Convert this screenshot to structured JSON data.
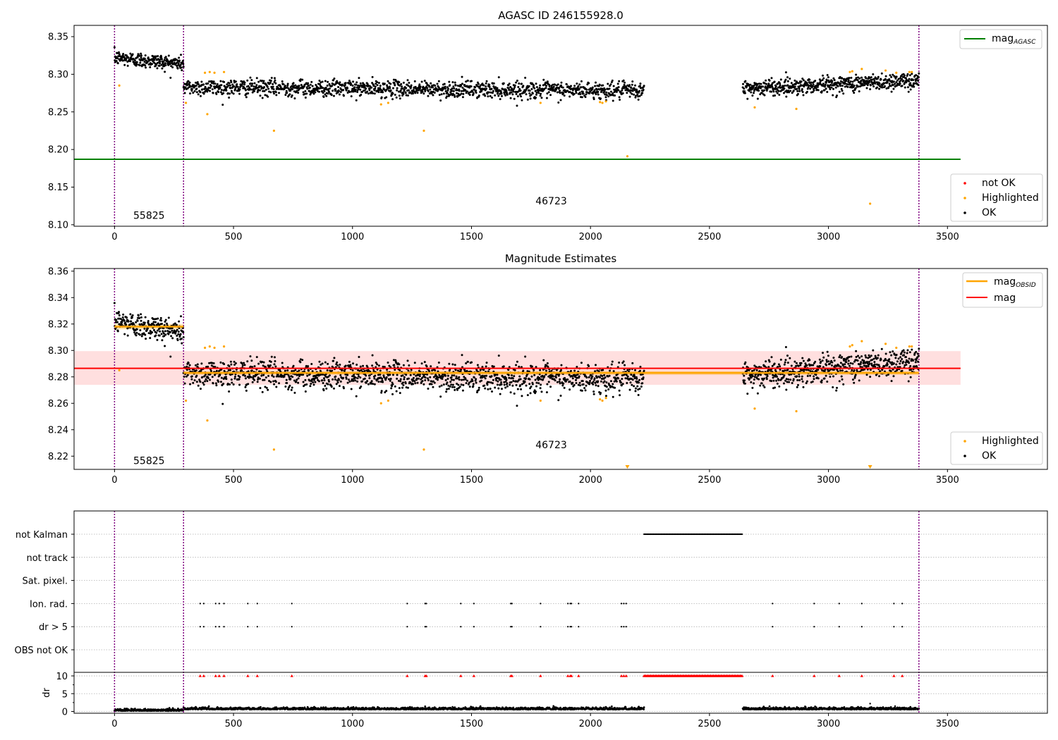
{
  "colors": {
    "ok": "#000000",
    "highlighted": "#FFA500",
    "not_ok": "#FF0000",
    "agasc_line": "#008000",
    "obsid_line": "#FFA500",
    "mag_line": "#FF0000",
    "band": "#FFC0C0",
    "obs_boundary": "#800080",
    "grid": "#b0b0b0"
  },
  "chart_data": [
    {
      "type": "scatter",
      "title": "AGASC ID 246155928.0",
      "xlim": [
        -170,
        3920
      ],
      "ylim": [
        8.098,
        8.365
      ],
      "xticks": [
        0,
        500,
        1000,
        1500,
        2000,
        2500,
        3000,
        3500
      ],
      "yticks": [
        8.1,
        8.15,
        8.2,
        8.25,
        8.3,
        8.35
      ],
      "mag_agasc": 8.187,
      "mag_agasc_xrange": [
        -170,
        3555
      ],
      "obs_boundaries": [
        0,
        290,
        3380
      ],
      "obs_labels": [
        {
          "x": 145,
          "y": 8.108,
          "text": "55825"
        },
        {
          "x": 1835,
          "y": 8.127,
          "text": "46723"
        }
      ],
      "segments": [
        {
          "x0": 0,
          "x1": 290,
          "start": 8.322,
          "end": 8.314,
          "noise": 0.005,
          "n": 240
        },
        {
          "x0": 290,
          "x1": 2225,
          "start": 8.283,
          "end": 8.278,
          "noise": 0.0055,
          "n": 1400
        },
        {
          "x0": 2640,
          "x1": 3380,
          "start": 8.281,
          "end": 8.292,
          "noise": 0.0055,
          "n": 600
        }
      ],
      "highlighted_points": [
        [
          20,
          8.285
        ],
        [
          300,
          8.262
        ],
        [
          380,
          8.302
        ],
        [
          390,
          8.247
        ],
        [
          400,
          8.303
        ],
        [
          420,
          8.302
        ],
        [
          460,
          8.303
        ],
        [
          670,
          8.225
        ],
        [
          1120,
          8.26
        ],
        [
          1150,
          8.262
        ],
        [
          1300,
          8.225
        ],
        [
          1790,
          8.262
        ],
        [
          2040,
          8.263
        ],
        [
          2050,
          8.262
        ],
        [
          2065,
          8.264
        ],
        [
          2155,
          8.191
        ],
        [
          2690,
          8.256
        ],
        [
          2865,
          8.254
        ],
        [
          3090,
          8.303
        ],
        [
          3100,
          8.304
        ],
        [
          3140,
          8.307
        ],
        [
          3175,
          8.128
        ],
        [
          3240,
          8.305
        ],
        [
          3285,
          8.302
        ],
        [
          3340,
          8.303
        ],
        [
          3350,
          8.303
        ]
      ],
      "legend_lines": [
        {
          "label": "mag",
          "sub": "AGASC"
        }
      ],
      "legend_markers": [
        {
          "label": "not OK",
          "color_key": "not_ok"
        },
        {
          "label": "Highlighted",
          "color_key": "highlighted"
        },
        {
          "label": "OK",
          "color_key": "ok"
        }
      ]
    },
    {
      "type": "scatter",
      "title": "Magnitude Estimates",
      "xlim": [
        -170,
        3920
      ],
      "ylim": [
        8.21,
        8.362
      ],
      "xticks": [
        0,
        500,
        1000,
        1500,
        2000,
        2500,
        3000,
        3500
      ],
      "yticks": [
        8.22,
        8.24,
        8.26,
        8.28,
        8.3,
        8.32,
        8.34,
        8.36
      ],
      "mag": 8.2865,
      "mag_band": [
        8.274,
        8.2995
      ],
      "mag_xrange": [
        -170,
        3555
      ],
      "obsid_levels": [
        {
          "x0": 0,
          "x1": 290,
          "mag": 8.318,
          "err": 0.002
        },
        {
          "x0": 290,
          "x1": 3380,
          "mag": 8.283,
          "err": 0.0015
        }
      ],
      "obs_boundaries": [
        0,
        290,
        3380
      ],
      "obs_labels": [
        {
          "x": 145,
          "y": 8.214,
          "text": "55825"
        },
        {
          "x": 1835,
          "y": 8.226,
          "text": "46723"
        }
      ],
      "clipped_points": [
        2155,
        3175
      ],
      "legend_lines": [
        {
          "label": "mag",
          "sub": "OBSID",
          "color_key": "obsid_line"
        },
        {
          "label": "mag",
          "sub": "",
          "color_key": "mag_line"
        }
      ],
      "legend_markers": [
        {
          "label": "Highlighted",
          "color_key": "highlighted"
        },
        {
          "label": "OK",
          "color_key": "ok"
        }
      ]
    },
    {
      "type": "scatter",
      "title": "",
      "xlim": [
        -170,
        3920
      ],
      "xticks": [
        0,
        500,
        1000,
        1500,
        2000,
        2500,
        3000,
        3500
      ],
      "flag_rows": [
        "not Kalman",
        "not track",
        "Sat. pixel.",
        "Ion. rad.",
        "dr > 5",
        "OBS not OK"
      ],
      "not_kalman_range": [
        2225,
        2640
      ],
      "ion_rad_x": [
        360,
        375,
        425,
        440,
        460,
        560,
        600,
        745,
        1230,
        1305,
        1310,
        1455,
        1510,
        1665,
        1670,
        1790,
        1905,
        1915,
        1920,
        1950,
        2130,
        2140,
        2150,
        2765,
        2940,
        3045,
        3140,
        3275,
        3310
      ],
      "dr_ylim": [
        -0.5,
        11
      ],
      "dr_yticks": [
        0,
        5,
        10
      ],
      "dr_ylabel": "dr",
      "dr_extra_points": [
        [
          1420,
          1.3
        ],
        [
          1430,
          1.2
        ],
        [
          3175,
          2.2
        ],
        [
          3280,
          1.5
        ]
      ],
      "obs_boundaries": [
        0,
        290,
        3380
      ]
    }
  ]
}
